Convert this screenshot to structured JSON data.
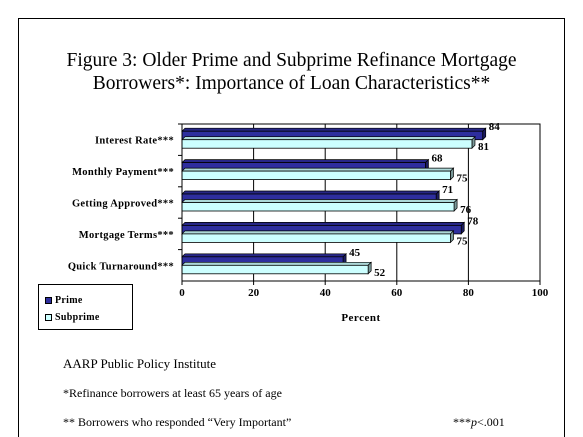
{
  "slide": {
    "title_line1": "Figure 3:  Older Prime and Subprime Refinance Mortgage",
    "title_line2": "Borrowers*: Importance of Loan Characteristics**",
    "source": "AARP Public Policy Institute",
    "footnote1": "*Refinance borrowers at least 65 years of age",
    "footnote2": "** Borrowers who responded “Very Important”",
    "significance_prefix": "***",
    "significance_p": "p",
    "significance_suffix": "<.001"
  },
  "colors": {
    "prime": "#2e2e9e",
    "subprime": "#ccffff",
    "outline": "#000000"
  },
  "chart_data": {
    "type": "bar",
    "orientation": "horizontal",
    "categories": [
      "Interest Rate***",
      "Monthly Payment***",
      "Getting Approved***",
      "Mortgage Terms***",
      "Quick Turnaround***"
    ],
    "series": [
      {
        "name": "Prime",
        "values": [
          84,
          68,
          71,
          78,
          45
        ]
      },
      {
        "name": "Subprime",
        "values": [
          81,
          75,
          76,
          75,
          52
        ]
      }
    ],
    "xlabel": "Percent",
    "ylabel": "",
    "xlim": [
      0,
      100
    ],
    "xticks": [
      0,
      20,
      40,
      60,
      80,
      100
    ],
    "grid": "vertical",
    "legend": "bottom-left"
  }
}
